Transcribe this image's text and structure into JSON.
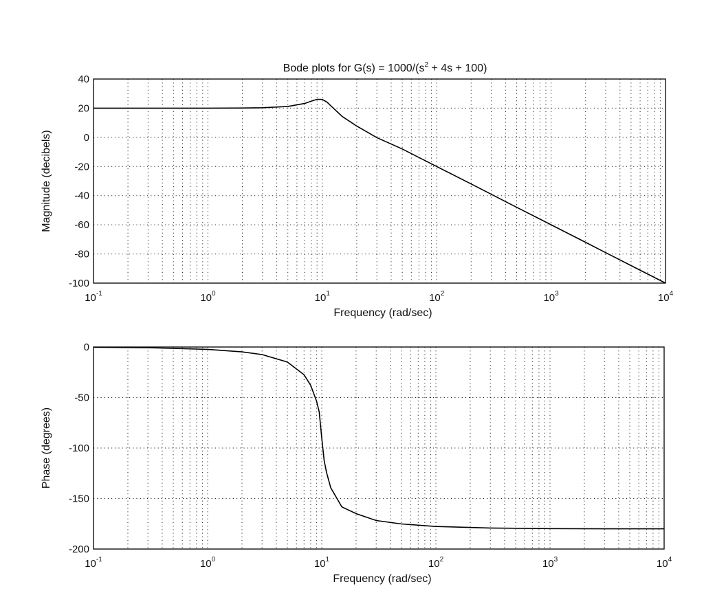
{
  "figure_title": {
    "prefix": "Bode plots for G(s) = 1000/(s",
    "exponent": "2",
    "suffix": " + 4s + 100)"
  },
  "chart_data": [
    {
      "type": "line",
      "xscale": "log",
      "xlim": [
        0.1,
        10000
      ],
      "ylim": [
        -100,
        40
      ],
      "xlabel": "Frequency (rad/sec)",
      "ylabel": "Magnitude (decibels)",
      "x_ticks": [
        {
          "base": "10",
          "exp": "-1"
        },
        {
          "base": "10",
          "exp": "0"
        },
        {
          "base": "10",
          "exp": "1"
        },
        {
          "base": "10",
          "exp": "2"
        },
        {
          "base": "10",
          "exp": "3"
        },
        {
          "base": "10",
          "exp": "4"
        }
      ],
      "y_ticks": [
        "40",
        "20",
        "0",
        "-20",
        "-40",
        "-60",
        "-80",
        "-100"
      ],
      "grid": true,
      "series": [
        {
          "x": [
            0.1,
            0.3,
            1,
            2,
            3,
            5,
            7,
            8,
            9,
            10,
            11,
            12,
            15,
            20,
            30,
            50,
            100,
            200,
            500,
            1000,
            2000,
            3000,
            5000,
            10000
          ],
          "y": [
            20,
            20,
            20,
            20.1,
            20.3,
            21.2,
            23.2,
            24.8,
            26.1,
            26.0,
            24.1,
            21.3,
            14.2,
            7.7,
            -0.2,
            -8.0,
            -20.0,
            -32.0,
            -48.0,
            -60.0,
            -72.0,
            -79.1,
            -88.0,
            -100.0
          ]
        }
      ]
    },
    {
      "type": "line",
      "xscale": "log",
      "xlim": [
        0.1,
        10000
      ],
      "ylim": [
        -200,
        0
      ],
      "xlabel": "Frequency (rad/sec)",
      "ylabel": "Phase (degrees)",
      "x_ticks": [
        {
          "base": "10",
          "exp": "-1"
        },
        {
          "base": "10",
          "exp": "0"
        },
        {
          "base": "10",
          "exp": "1"
        },
        {
          "base": "10",
          "exp": "2"
        },
        {
          "base": "10",
          "exp": "3"
        },
        {
          "base": "10",
          "exp": "4"
        }
      ],
      "y_ticks": [
        "0",
        "-50",
        "-100",
        "-150",
        "-200"
      ],
      "grid": true,
      "series": [
        {
          "x": [
            0.1,
            0.3,
            1,
            2,
            3,
            5,
            7,
            8,
            9,
            9.5,
            10,
            10.5,
            11,
            12,
            15,
            20,
            30,
            50,
            100,
            300,
            1000,
            3000,
            10000
          ],
          "y": [
            -0.2,
            -0.7,
            -2.3,
            -4.8,
            -7.5,
            -14.9,
            -27.5,
            -37.9,
            -53.5,
            -64.2,
            -90.0,
            -112.3,
            -124.0,
            -139.4,
            -158.2,
            -165.0,
            -171.8,
            -175.2,
            -177.7,
            -179.2,
            -179.8,
            -180.0,
            -180.0
          ]
        }
      ]
    }
  ]
}
